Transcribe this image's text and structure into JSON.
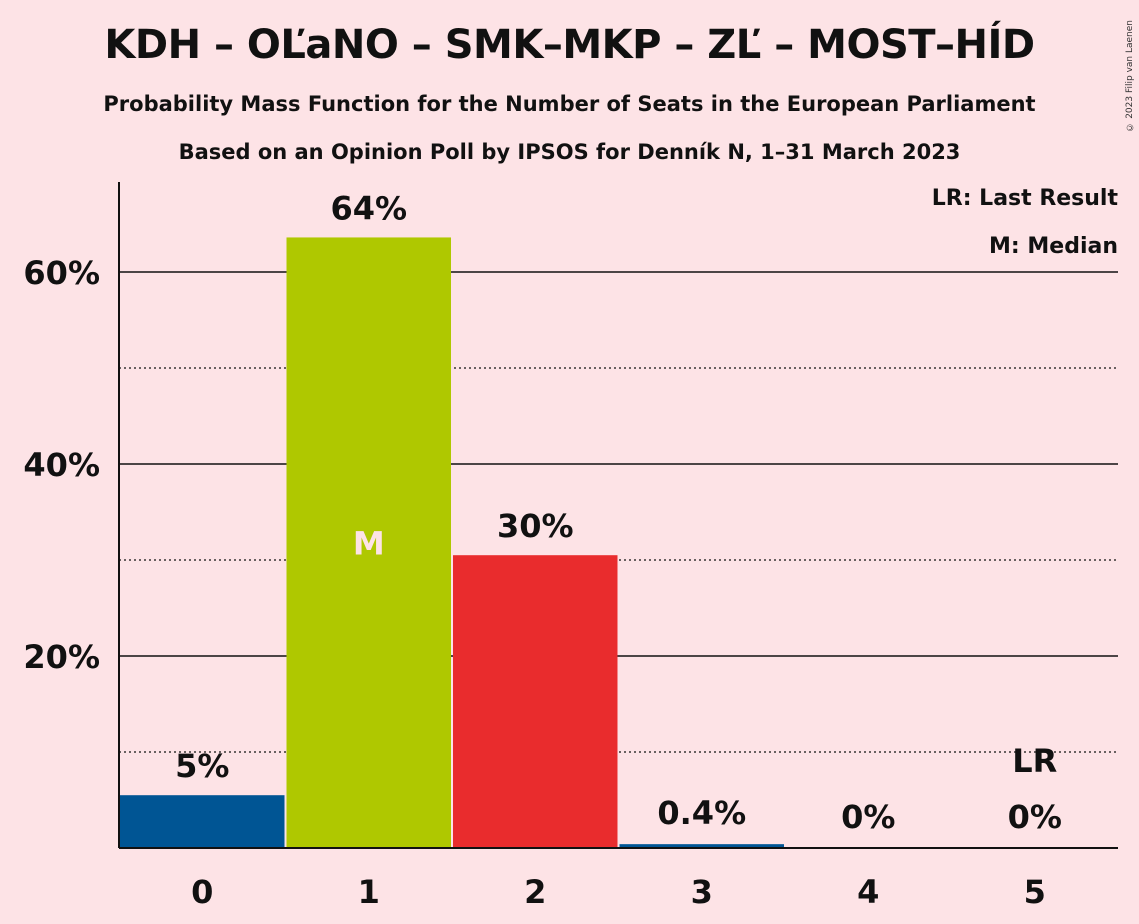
{
  "header": {
    "title": "KDH – OĽaNO – SMK–MKP – ZĽ – MOST–HÍD",
    "subtitle_1": "Probability Mass Function for the Number of Seats in the European Parliament",
    "subtitle_2": "Based on an Opinion Poll by IPSOS for Denník N, 1–31 March 2023",
    "copyright": "© 2023 Filip van Laenen"
  },
  "legend": {
    "last_result": "LR: Last Result",
    "median": "M: Median"
  },
  "chart_data": {
    "type": "bar",
    "categories": [
      "0",
      "1",
      "2",
      "3",
      "4",
      "5"
    ],
    "values": [
      5.5,
      63.6,
      30.5,
      0.4,
      0,
      0
    ],
    "data_labels": [
      "5%",
      "64%",
      "30%",
      "0.4%",
      "0%",
      "0%"
    ],
    "bar_colors": [
      "#005594",
      "#afc800",
      "#e92c2d",
      "#005594",
      "#005594",
      "#005594"
    ],
    "median_category": "1",
    "median_marker": "M",
    "last_result_category": "5",
    "last_result_marker": "LR",
    "y_ticks": [
      20,
      40,
      60
    ],
    "y_tick_labels": [
      "20%",
      "40%",
      "60%"
    ],
    "y_minor_gridlines": [
      10,
      30,
      50
    ],
    "ylim": [
      0,
      69.5
    ],
    "grid": true,
    "legend_placement": "top-right"
  }
}
